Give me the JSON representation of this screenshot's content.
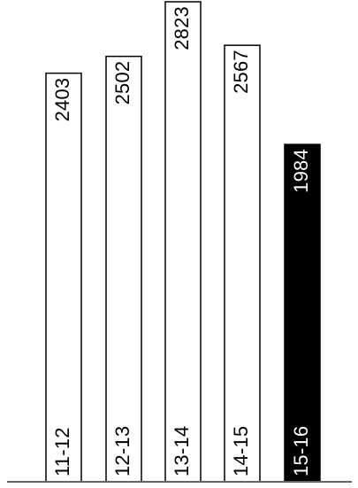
{
  "chart_data": {
    "type": "bar",
    "categories": [
      "11-12",
      "12-13",
      "13-14",
      "14-15",
      "15-16"
    ],
    "values": [
      2403,
      2502,
      2823,
      2567,
      1984
    ],
    "highlight_index": 4,
    "title": "",
    "xlabel": "",
    "ylabel": "",
    "ylim": [
      0,
      2823
    ],
    "orientation": "vertical",
    "label_style": "rotated text inside bars",
    "colors": {
      "bar_fill": "#ffffff",
      "bar_stroke": "#000000",
      "highlight_fill": "#000000",
      "highlight_text": "#ffffff",
      "text": "#000000",
      "baseline": "#666666"
    }
  }
}
